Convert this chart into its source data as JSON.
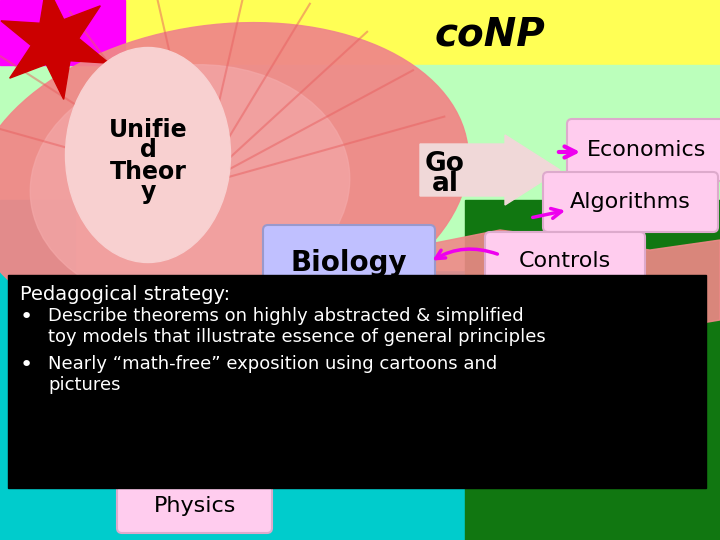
{
  "bg_color": "#00cccc",
  "conp_color": "#ffff55",
  "green_light_color": "#bbffbb",
  "dark_green_color": "#117711",
  "pig_color": "#f08888",
  "pig_inner_color": "#f4a8a8",
  "star_magenta": "#ff00ff",
  "star_red": "#cc0000",
  "unified_ellipse_color": "#f8d0d0",
  "biology_box_color": "#c0c0ff",
  "biology_box_edge": "#9999cc",
  "pink_box_color": "#ffccee",
  "pink_box_edge": "#ddaacc",
  "cyan_color": "#00cccc",
  "goal_arrow_color": "#f0d8d8",
  "magenta_color": "#ee00ee",
  "black": "#000000",
  "white": "#ffffff",
  "conp_text": "coNP",
  "unified_line1": "Unifie",
  "unified_line2": "d",
  "unified_line3": "Theor",
  "unified_line4": "y",
  "goal_line1": "Go",
  "goal_line2": "al",
  "biology_text": "Biology",
  "economics_text": "Economics",
  "algorithms_text": "Algorithms",
  "controls_text": "Controls",
  "physics_text": "Physics",
  "pedagogy_title": "Pedagogical strategy:",
  "bullet1_line1": "Describe theorems on highly abstracted & simplified",
  "bullet1_line2": "toy models that illustrate essence of general principles",
  "bullet2_line1": "Nearly “math-free” exposition using cartoons and",
  "bullet2_line2": "pictures",
  "text_color_white": "#ffffff"
}
